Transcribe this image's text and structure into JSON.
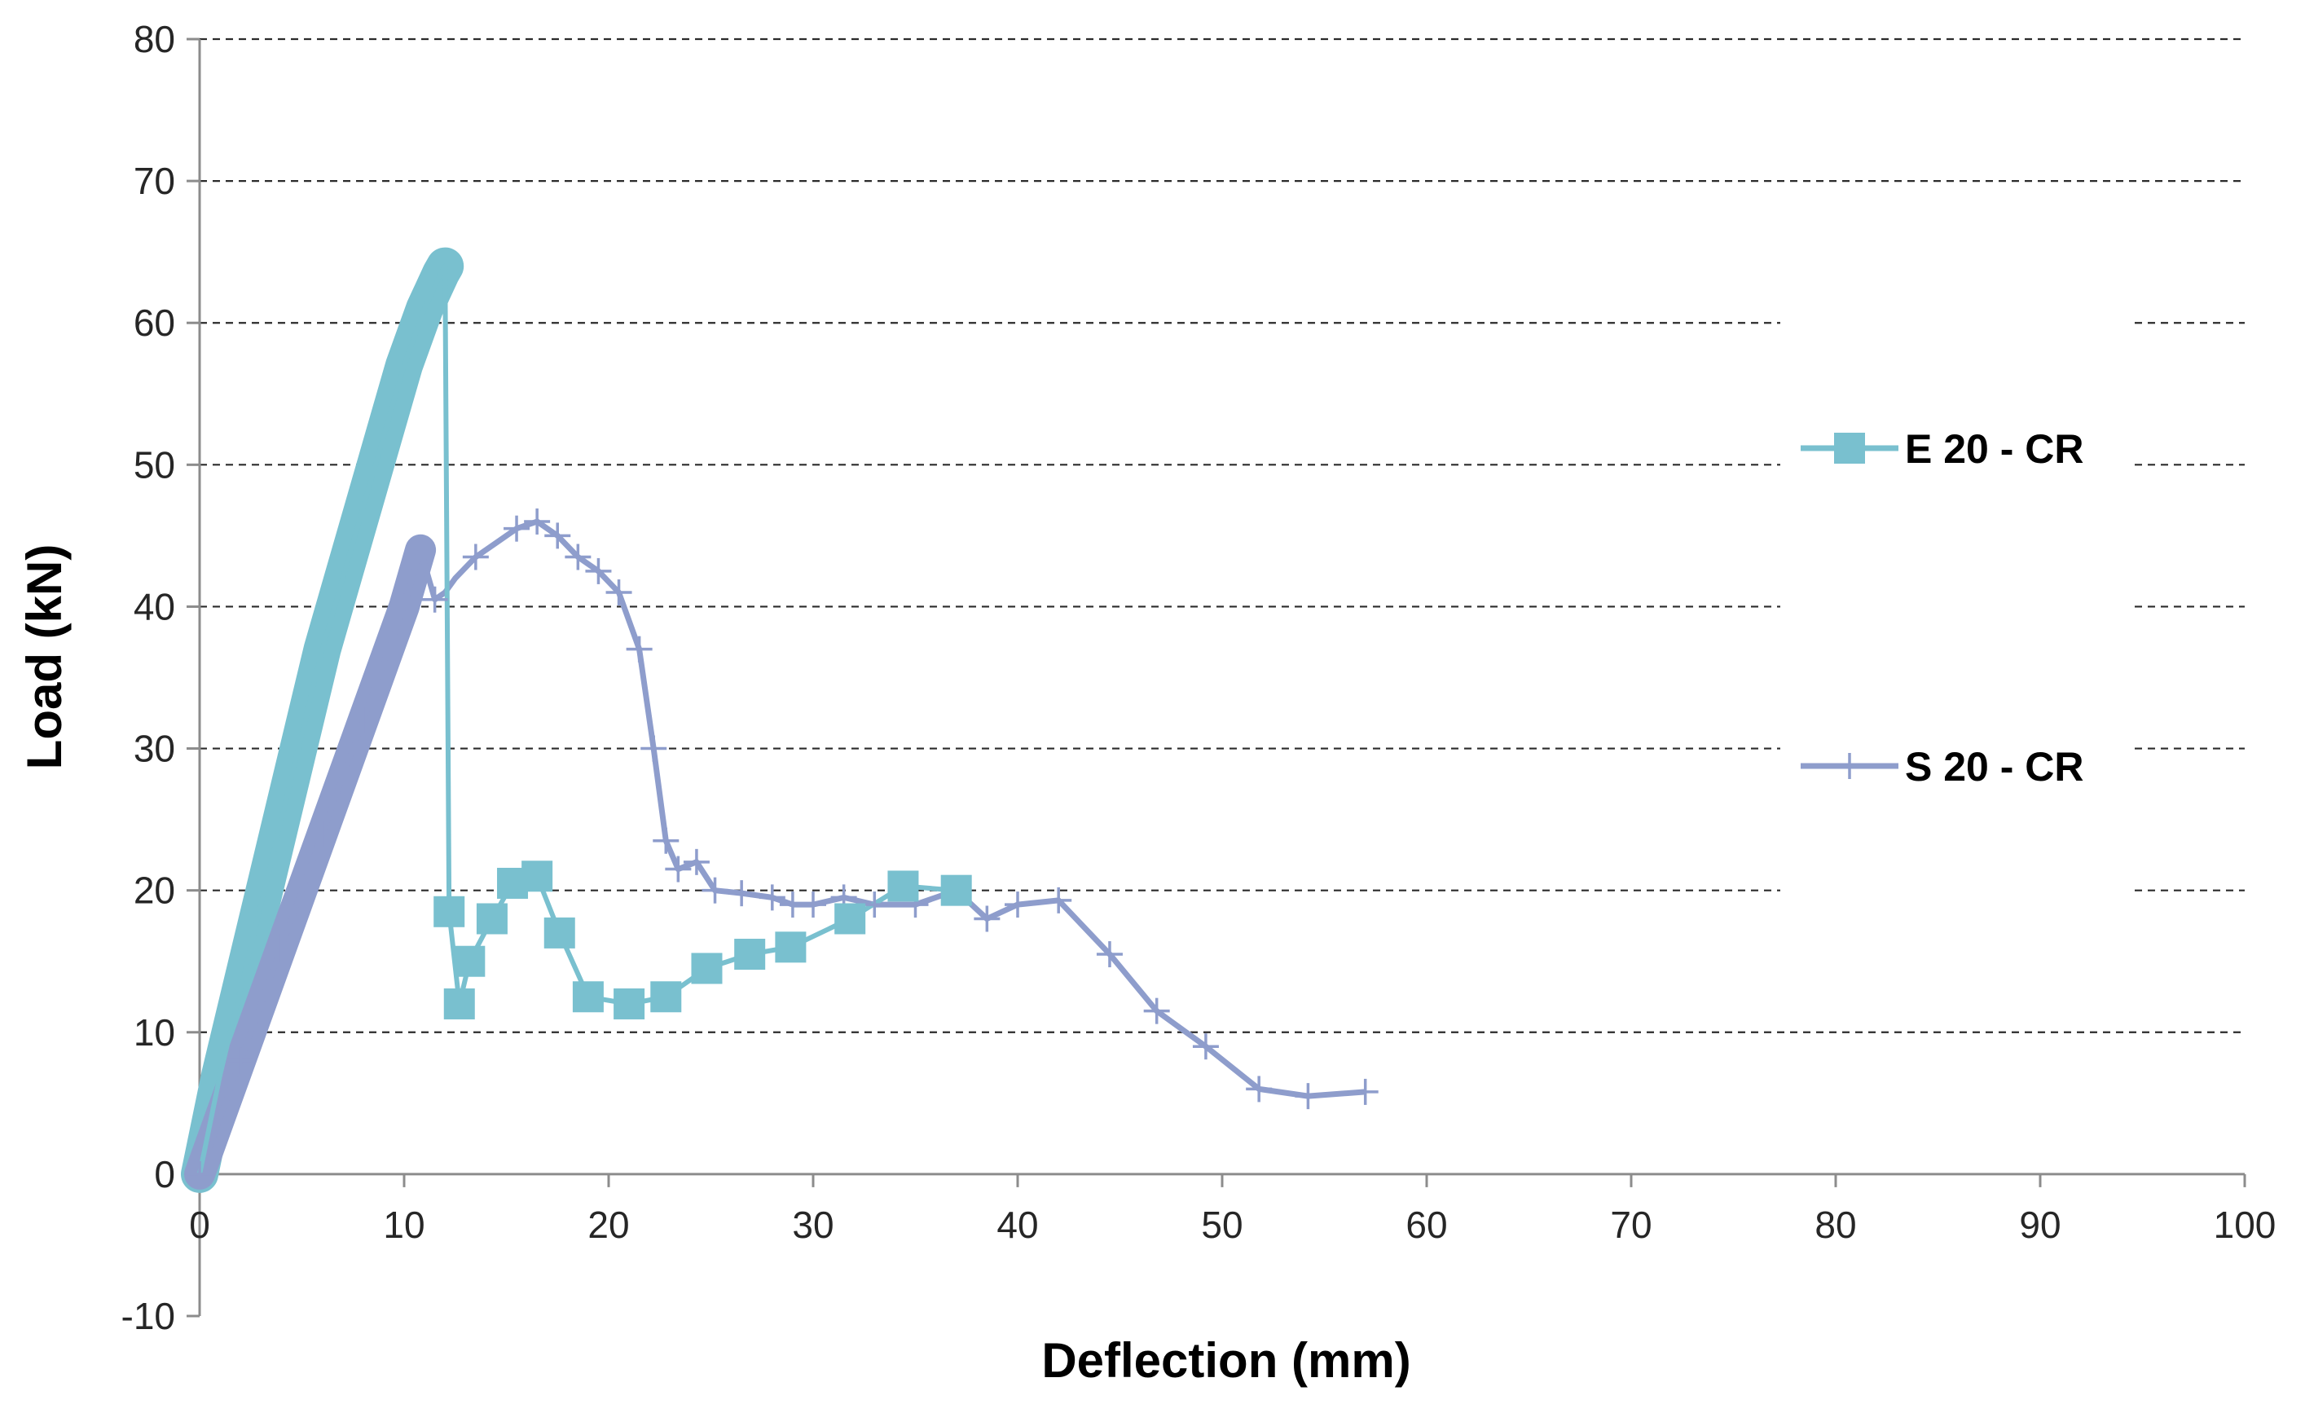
{
  "chart_data": {
    "type": "line",
    "title": "",
    "xlabel": "Deflection (mm)",
    "ylabel": "Load (kN)",
    "xlim": [
      0,
      100
    ],
    "ylim": [
      -10,
      80
    ],
    "x_ticks": [
      0,
      10,
      20,
      30,
      40,
      50,
      60,
      70,
      80,
      90,
      100
    ],
    "y_ticks": [
      -10,
      0,
      10,
      20,
      30,
      40,
      50,
      60,
      70,
      80
    ],
    "x_tick_labels": [
      "0",
      "10",
      "20",
      "30",
      "40",
      "50",
      "60",
      "70",
      "80",
      "90",
      "100"
    ],
    "y_tick_labels": [
      "-10",
      "0",
      "10",
      "20",
      "30",
      "40",
      "50",
      "60",
      "70",
      "80"
    ],
    "grid": "horizontal-dashed",
    "legend_position": "right",
    "series": [
      {
        "name": "E 20 - CR",
        "color": "#79c0cf",
        "marker": "square",
        "x": [
          0,
          1,
          2,
          3,
          4,
          5,
          6,
          7,
          8,
          9,
          10,
          11,
          11.8,
          12,
          12,
          12.2,
          12.7,
          13.2,
          14.3,
          15.3,
          16.5,
          17.6,
          19,
          21,
          22.8,
          24.8,
          26.9,
          28.9,
          31.8,
          34.4,
          37
        ],
        "y": [
          0,
          7,
          13,
          19,
          25,
          31,
          37,
          42,
          47,
          52,
          57,
          61,
          63.5,
          64,
          64,
          18.5,
          12,
          15,
          18,
          20.5,
          21,
          17,
          12.5,
          12,
          12.5,
          14.5,
          15.5,
          16,
          18,
          20.3,
          20
        ],
        "markers_x": [
          12.2,
          12.7,
          13.2,
          14.3,
          15.3,
          16.5,
          17.6,
          19,
          21,
          22.8,
          24.8,
          26.9,
          28.9,
          31.8,
          34.4,
          37
        ],
        "markers_y": [
          18.5,
          12,
          15,
          18,
          20.5,
          21,
          17,
          12.5,
          12,
          12.5,
          14.5,
          15.5,
          16,
          18,
          20.3,
          20
        ]
      },
      {
        "name": "S 20 - CR",
        "color": "#8e9dcc",
        "marker": "plus",
        "x": [
          0,
          1,
          2,
          3,
          4,
          5,
          6,
          7,
          8,
          9,
          10,
          10.8,
          11.5,
          12,
          12.5,
          13.5,
          14.5,
          15.5,
          16.5,
          17.5,
          18.5,
          19.5,
          20.5,
          21.5,
          22.2,
          22.8,
          23.4,
          24.3,
          25.2,
          26.5,
          28,
          29,
          30,
          31.5,
          33,
          35,
          37,
          38.5,
          40,
          42,
          44.5,
          46.8,
          49.2,
          51.8,
          54.2,
          57
        ],
        "y": [
          0,
          4,
          8,
          12,
          16,
          20,
          24,
          28,
          32,
          36,
          40,
          44,
          40.5,
          41,
          42,
          43.5,
          44.5,
          45.5,
          46,
          45,
          43.5,
          42.5,
          41,
          37,
          30,
          23.5,
          21.5,
          22,
          20,
          19.8,
          19.5,
          19,
          19,
          19.5,
          19,
          19,
          20,
          18,
          19,
          19.3,
          15.5,
          11.5,
          9,
          6,
          5.5,
          5.8
        ],
        "markers_x": [
          0,
          2,
          4,
          6,
          8,
          10,
          11.5,
          13.5,
          15.5,
          16.5,
          17.5,
          18.5,
          19.5,
          20.5,
          21.5,
          22.2,
          22.8,
          23.4,
          24.3,
          25.2,
          26.5,
          28,
          29,
          30,
          31.5,
          33,
          35,
          37,
          38.5,
          40,
          42,
          44.5,
          46.8,
          49.2,
          51.8,
          54.2,
          57
        ],
        "markers_y": [
          0,
          8,
          16,
          24,
          32,
          40,
          40.5,
          43.5,
          45.5,
          46,
          45,
          43.5,
          42.5,
          41,
          37,
          30,
          23.5,
          21.5,
          22,
          20,
          19.8,
          19.5,
          19,
          19,
          19.5,
          19,
          19,
          20,
          18,
          19,
          19.3,
          15.5,
          11.5,
          9,
          6,
          5.5,
          5.8
        ]
      }
    ]
  }
}
